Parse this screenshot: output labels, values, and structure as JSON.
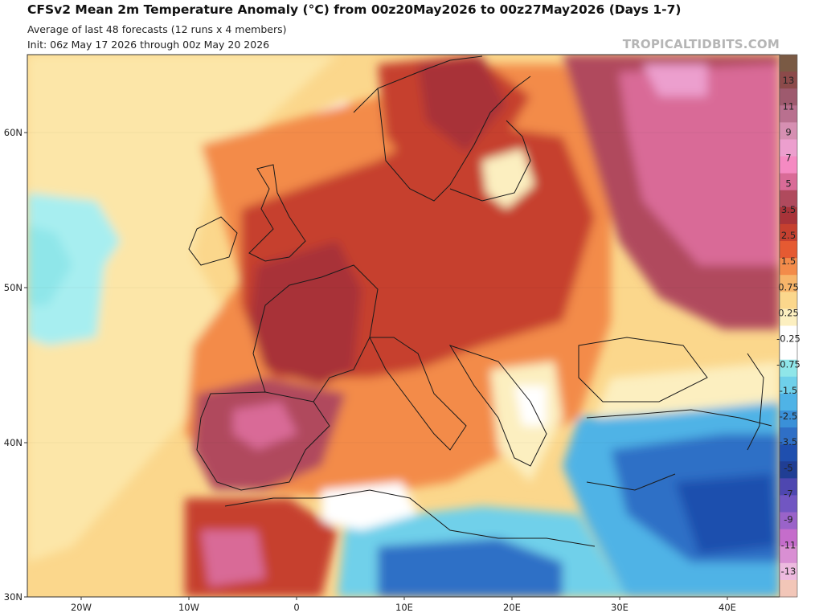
{
  "title": "CFSv2 Mean 2m Temperature Anomaly (°C) from 00z20May2026 to 00z27May2026 (Days 1-7)",
  "subtitle_line1": "Average of last 48 forecasts (12 runs x 4 members)",
  "subtitle_line2": "Init: 06z May 17 2026 through 00z May 20 2026",
  "watermark": "TROPICALTIDBITS.COM",
  "axes": {
    "lat_labels": [
      "60N",
      "50N",
      "40N",
      "30N"
    ],
    "lon_labels": [
      "20W",
      "10W",
      "0",
      "10E",
      "20E",
      "30E",
      "40E"
    ]
  },
  "colorbar": {
    "labels": [
      "13",
      "11",
      "9",
      "7",
      "5",
      "3.5",
      "2.5",
      "1.5",
      "0.75",
      "0.25",
      "-0.25",
      "-0.75",
      "-1.5",
      "-2.5",
      "-3.5",
      "-5",
      "-7",
      "-9",
      "-11",
      "-13"
    ],
    "colors": [
      "#7a5a44",
      "#8c4a4a",
      "#9e5a6e",
      "#b9708f",
      "#d68fb2",
      "#ec9fce",
      "#f58ac2",
      "#d96b97",
      "#b04a5d",
      "#a83339",
      "#c6402f",
      "#e55a32",
      "#f38b4a",
      "#f7b56a",
      "#fbd78c",
      "#fcefc0",
      "#ffffff",
      "#ffffff",
      "#8fe6e9",
      "#6fd0ea",
      "#4fb3e6",
      "#3a90d8",
      "#2f6fc6",
      "#1f4fae",
      "#203e94",
      "#4e47b0",
      "#7156c2",
      "#9a63c9",
      "#c56dcb",
      "#d98fd3",
      "#edbadf",
      "#f2c6b8"
    ]
  }
}
